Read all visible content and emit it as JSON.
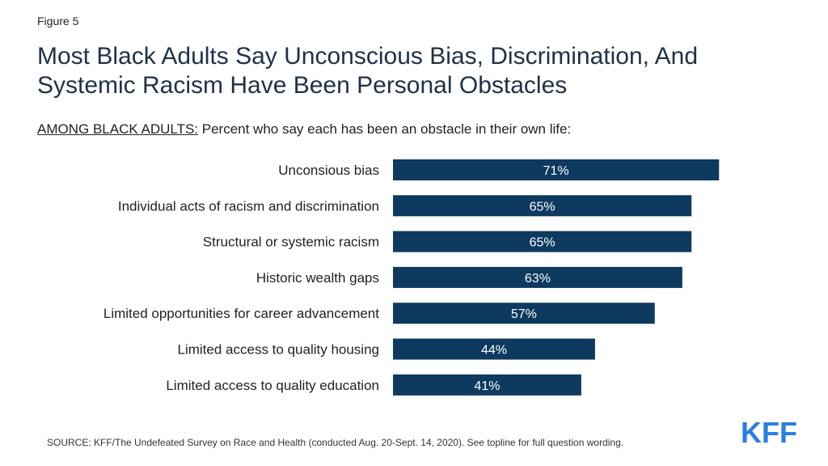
{
  "figure_label": "Figure 5",
  "title": "Most Black Adults Say Unconscious Bias, Discrimination, And Systemic Racism Have Been Personal Obstacles",
  "subtitle_prefix": "AMONG BLACK ADULTS:",
  "subtitle_text": "Percent who say each has been an obstacle in their own life:",
  "source": "SOURCE: KFF/The Undefeated Survey on Race and Health (conducted Aug. 20-Sept. 14, 2020). See topline for full question wording.",
  "logo_text": "KFF",
  "colors": {
    "bar": "#0e3a5f",
    "bar_label": "#ffffff",
    "category_label": "#222222",
    "logo": "#2a7de1"
  },
  "chart_data": {
    "type": "bar",
    "orientation": "horizontal",
    "categories": [
      "Unconsious bias",
      "Individual acts of racism and discrimination",
      "Structural or systemic racism",
      "Historic wealth gaps",
      "Limited opportunities for career advancement",
      "Limited access to quality housing",
      "Limited access to quality education"
    ],
    "values": [
      71,
      65,
      65,
      63,
      57,
      44,
      41
    ],
    "data_labels": [
      "71%",
      "65%",
      "65%",
      "63%",
      "57%",
      "44%",
      "41%"
    ],
    "xlim": [
      0,
      100
    ],
    "grid": false,
    "title": "",
    "xlabel": "",
    "ylabel": ""
  }
}
